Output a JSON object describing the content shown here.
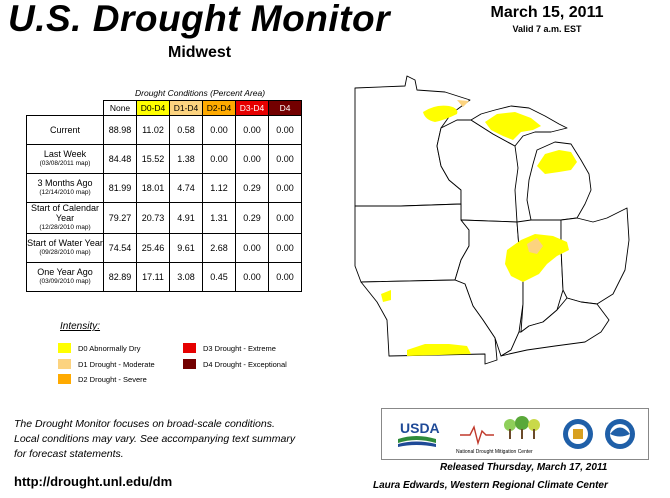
{
  "header": {
    "title": "U.S. Drought Monitor",
    "region": "Midwest",
    "date": "March 15, 2011",
    "valid": "Valid 7 a.m. EST"
  },
  "table": {
    "caption": "Drought Conditions (Percent Area)",
    "columns": [
      "None",
      "D0-D4",
      "D1-D4",
      "D2-D4",
      "D3-D4",
      "D4"
    ],
    "rows": [
      {
        "label": "Current",
        "sub": "",
        "values": [
          "88.98",
          "11.02",
          "0.58",
          "0.00",
          "0.00",
          "0.00"
        ]
      },
      {
        "label": "Last Week",
        "sub": "(03/08/2011 map)",
        "values": [
          "84.48",
          "15.52",
          "1.38",
          "0.00",
          "0.00",
          "0.00"
        ]
      },
      {
        "label": "3 Months Ago",
        "sub": "(12/14/2010 map)",
        "values": [
          "81.99",
          "18.01",
          "4.74",
          "1.12",
          "0.29",
          "0.00"
        ]
      },
      {
        "label": "Start of Calendar Year",
        "sub": "(12/28/2010 map)",
        "values": [
          "79.27",
          "20.73",
          "4.91",
          "1.31",
          "0.29",
          "0.00"
        ]
      },
      {
        "label": "Start of Water Year",
        "sub": "(09/28/2010 map)",
        "values": [
          "74.54",
          "25.46",
          "9.61",
          "2.68",
          "0.00",
          "0.00"
        ]
      },
      {
        "label": "One Year Ago",
        "sub": "(03/09/2010 map)",
        "values": [
          "82.89",
          "17.11",
          "3.08",
          "0.45",
          "0.00",
          "0.00"
        ]
      }
    ]
  },
  "legend": {
    "title": "Intensity:",
    "items": [
      {
        "label": "D0 Abnormally Dry",
        "color": "#ffff00"
      },
      {
        "label": "D1 Drought - Moderate",
        "color": "#fcd37f"
      },
      {
        "label": "D2 Drought - Severe",
        "color": "#ffaa00"
      },
      {
        "label": "D3 Drought - Extreme",
        "color": "#e60000"
      },
      {
        "label": "D4 Drought - Exceptional",
        "color": "#730000"
      }
    ]
  },
  "note": {
    "line1": "The Drought Monitor focuses on broad-scale conditions.",
    "line2": "Local conditions may vary. See accompanying text summary",
    "line3": "for forecast statements."
  },
  "url": "http://drought.unl.edu/dm",
  "footer": {
    "released": "Released Thursday, March 17, 2011",
    "author": "Laura Edwards, Western Regional Climate Center"
  },
  "logos": {
    "usda": "USDA",
    "ndmc": "National Drought Mitigation Center"
  }
}
